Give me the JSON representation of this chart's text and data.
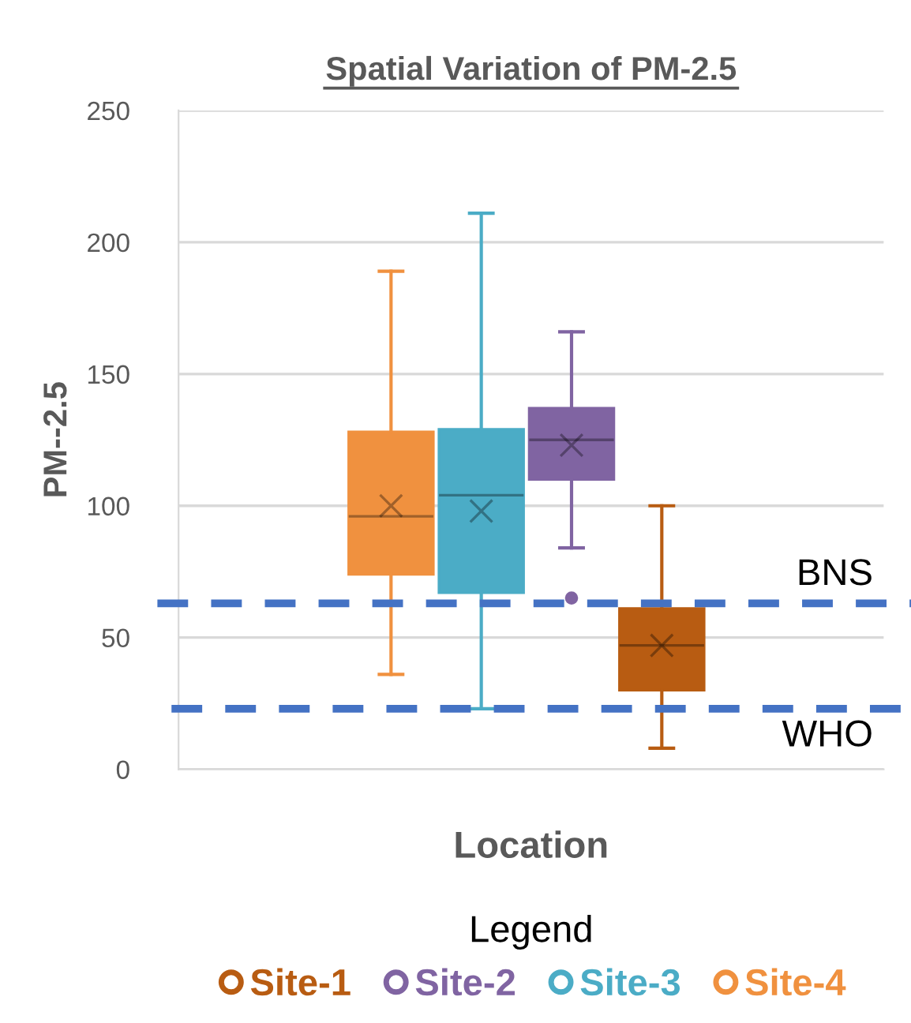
{
  "chart_data": {
    "type": "box",
    "title": "Spatial Variation of PM-2.5",
    "xlabel": "Location",
    "ylabel": "PM--2.5",
    "legend_title": "Legend",
    "categories": [
      null
    ],
    "series": [
      {
        "name": "Site-4",
        "color": "#f0913f",
        "boxes": [
          {
            "low": 36,
            "q1": 74,
            "median": 96,
            "q3": 128,
            "high": 189,
            "mean": 100
          }
        ]
      },
      {
        "name": "Site-3",
        "color": "#4bacc6",
        "boxes": [
          {
            "low": 23,
            "q1": 67,
            "median": 104,
            "q3": 129,
            "high": 211,
            "mean": 98
          }
        ]
      },
      {
        "name": "Site-2",
        "color": "#8064a2",
        "boxes": [
          {
            "low": 84,
            "q1": 110,
            "median": 125,
            "q3": 137,
            "high": 166,
            "mean": 123,
            "outliers": [
              65
            ]
          }
        ]
      },
      {
        "name": "Site-1",
        "color": "#b85c12",
        "boxes": [
          {
            "low": 8,
            "q1": 30,
            "median": 47,
            "q3": 61,
            "high": 100,
            "mean": 47
          }
        ]
      }
    ],
    "ylim": [
      0,
      250
    ],
    "yticks": [
      0,
      50,
      100,
      150,
      200,
      250
    ],
    "grid": "y",
    "legend": "bottom",
    "ref_lines": [
      {
        "axis": "y",
        "value": 63,
        "label": "BNS",
        "color": "#4472c4",
        "line_style": "dashed"
      },
      {
        "axis": "y",
        "value": 23,
        "label": "WHO",
        "color": "#4472c4",
        "line_style": "dashed"
      }
    ]
  }
}
